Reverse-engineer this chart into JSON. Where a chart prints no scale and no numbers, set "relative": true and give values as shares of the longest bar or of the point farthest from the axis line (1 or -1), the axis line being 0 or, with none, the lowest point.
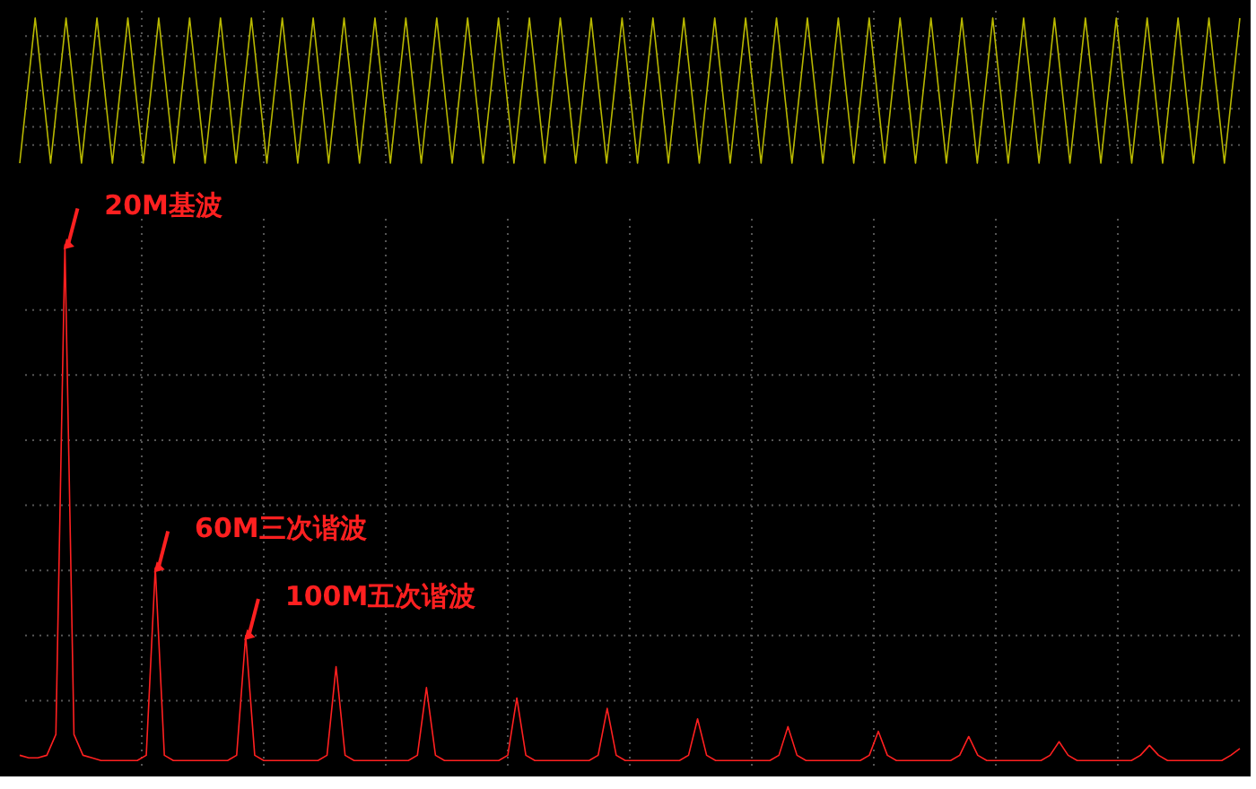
{
  "chart_data": [
    {
      "type": "line",
      "relative": true,
      "categories": [
        null,
        null,
        null,
        null,
        null,
        null,
        null,
        null,
        null,
        null,
        null,
        null,
        null,
        null,
        null,
        null,
        null,
        null,
        null,
        null,
        null,
        null,
        null,
        null,
        null,
        null,
        null,
        null,
        null,
        null,
        null,
        null,
        null,
        null,
        null,
        null,
        null,
        null,
        null,
        null,
        null,
        null,
        null,
        null,
        null,
        null,
        null,
        null,
        null,
        null,
        null,
        null,
        null,
        null,
        null,
        null,
        null,
        null,
        null,
        null,
        null,
        null,
        null,
        null,
        null,
        null,
        null,
        null,
        null,
        null,
        null,
        null,
        null,
        null,
        null,
        null,
        null,
        null,
        null,
        null
      ],
      "series": [
        {
          "color": "#b8b800",
          "values": [
            0,
            1,
            0,
            1,
            0,
            1,
            0,
            1,
            0,
            1,
            0,
            1,
            0,
            1,
            0,
            1,
            0,
            1,
            0,
            1,
            0,
            1,
            0,
            1,
            0,
            1,
            0,
            1,
            0,
            1,
            0,
            1,
            0,
            1,
            0,
            1,
            0,
            1,
            0,
            1,
            0,
            1,
            0,
            1,
            0,
            1,
            0,
            1,
            0,
            1,
            0,
            1,
            0,
            1,
            0,
            1,
            0,
            1,
            0,
            1,
            0,
            1,
            0,
            1,
            0,
            1,
            0,
            1,
            0,
            1,
            0,
            1,
            0,
            1,
            0,
            1,
            0,
            1,
            0,
            1
          ]
        }
      ],
      "grid": true
    },
    {
      "type": "line",
      "relative": true,
      "categories": [
        null,
        null,
        null,
        null,
        null,
        null,
        null,
        null,
        null,
        null,
        null,
        null,
        null,
        null,
        null,
        null,
        null,
        null,
        null,
        null,
        null,
        null,
        null,
        null,
        null,
        null,
        null,
        null,
        null,
        null,
        null,
        null,
        null,
        null,
        null,
        null,
        null,
        null,
        null,
        null,
        null,
        null,
        null,
        null,
        null,
        null,
        null,
        null,
        null,
        null,
        null,
        null,
        null,
        null,
        null,
        null,
        null,
        null,
        null,
        null,
        null,
        null,
        null,
        null,
        null,
        null,
        null,
        null,
        null,
        null,
        null,
        null,
        null,
        null,
        null,
        null,
        null,
        null,
        null,
        null,
        null,
        null,
        null,
        null,
        null,
        null,
        null,
        null,
        null,
        null,
        null,
        null,
        null,
        null,
        null,
        null,
        null,
        null,
        null,
        null,
        null,
        null,
        null,
        null,
        null,
        null,
        null,
        null,
        null,
        null,
        null,
        null,
        null,
        null,
        null,
        null,
        null,
        null,
        null,
        null,
        null,
        null,
        null,
        null,
        null,
        null,
        null,
        null,
        null,
        null,
        null,
        null,
        null,
        null,
        null,
        null
      ],
      "series": [
        {
          "color": "#ff2020",
          "values": [
            0.02,
            0.015,
            0.015,
            0.02,
            0.06,
            1,
            0.06,
            0.02,
            0.015,
            0.01,
            0.01,
            0.01,
            0.01,
            0.01,
            0.02,
            0.38,
            0.02,
            0.01,
            0.01,
            0.01,
            0.01,
            0.01,
            0.01,
            0.01,
            0.02,
            0.25,
            0.02,
            0.01,
            0.01,
            0.01,
            0.01,
            0.01,
            0.01,
            0.01,
            0.02,
            0.19,
            0.02,
            0.01,
            0.01,
            0.01,
            0.01,
            0.01,
            0.01,
            0.01,
            0.02,
            0.15,
            0.02,
            0.01,
            0.01,
            0.01,
            0.01,
            0.01,
            0.01,
            0.01,
            0.02,
            0.13,
            0.02,
            0.01,
            0.01,
            0.01,
            0.01,
            0.01,
            0.01,
            0.01,
            0.02,
            0.11,
            0.02,
            0.01,
            0.01,
            0.01,
            0.01,
            0.01,
            0.01,
            0.01,
            0.02,
            0.09,
            0.02,
            0.01,
            0.01,
            0.01,
            0.01,
            0.01,
            0.01,
            0.01,
            0.02,
            0.075,
            0.02,
            0.01,
            0.01,
            0.01,
            0.01,
            0.01,
            0.01,
            0.01,
            0.02,
            0.066,
            0.02,
            0.01,
            0.01,
            0.01,
            0.01,
            0.01,
            0.01,
            0.01,
            0.02,
            0.056,
            0.02,
            0.01,
            0.01,
            0.01,
            0.01,
            0.01,
            0.01,
            0.01,
            0.02,
            0.046,
            0.02,
            0.01,
            0.01,
            0.01,
            0.01,
            0.01,
            0.01,
            0.01,
            0.02,
            0.039,
            0.02,
            0.01,
            0.01,
            0.01,
            0.01,
            0.01,
            0.01,
            0.01,
            0.02,
            0.033
          ]
        }
      ],
      "annotations": [
        "20M基波",
        "60M三次谐波",
        "100M五次谐波"
      ],
      "grid": true
    }
  ]
}
